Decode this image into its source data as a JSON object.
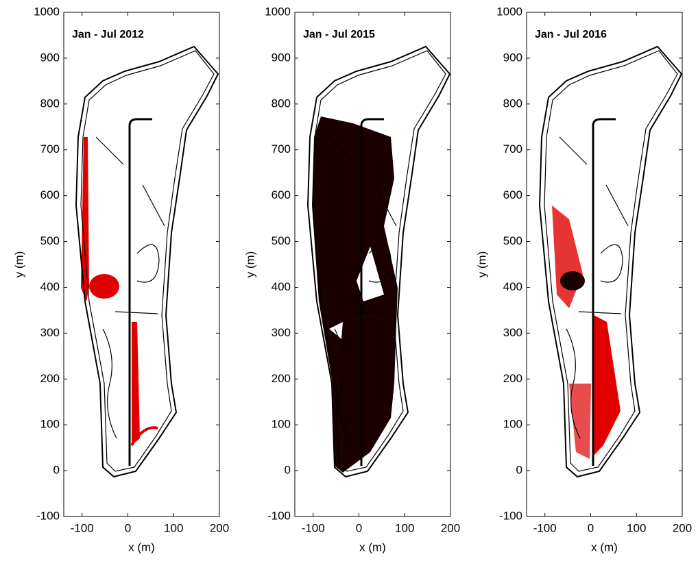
{
  "chart_data": [
    {
      "type": "map",
      "title": "Jan - Jul 2012",
      "x_label": "x (m)",
      "y_label": "y (m)",
      "xlim": [
        -140,
        200
      ],
      "ylim": [
        -100,
        1000
      ],
      "xticks": [
        -100,
        0,
        100,
        200
      ],
      "yticks": [
        -100,
        0,
        100,
        200,
        300,
        400,
        500,
        600,
        700,
        800,
        900,
        1000
      ]
    },
    {
      "type": "map",
      "title": "Jan - Jul 2015",
      "x_label": "x (m)",
      "y_label": "y (m)",
      "xlim": [
        -140,
        200
      ],
      "ylim": [
        -100,
        1000
      ],
      "xticks": [
        -100,
        0,
        100,
        200
      ],
      "yticks": [
        -100,
        0,
        100,
        200,
        300,
        400,
        500,
        600,
        700,
        800,
        900,
        1000
      ]
    },
    {
      "type": "map",
      "title": "Jan - Jul 2016",
      "x_label": "x (m)",
      "y_label": "y (m)",
      "xlim": [
        -140,
        200
      ],
      "ylim": [
        -100,
        1000
      ],
      "xticks": [
        -100,
        0,
        100,
        200
      ],
      "yticks": [
        -100,
        0,
        100,
        200,
        300,
        400,
        500,
        600,
        700,
        800,
        900,
        1000
      ]
    }
  ]
}
